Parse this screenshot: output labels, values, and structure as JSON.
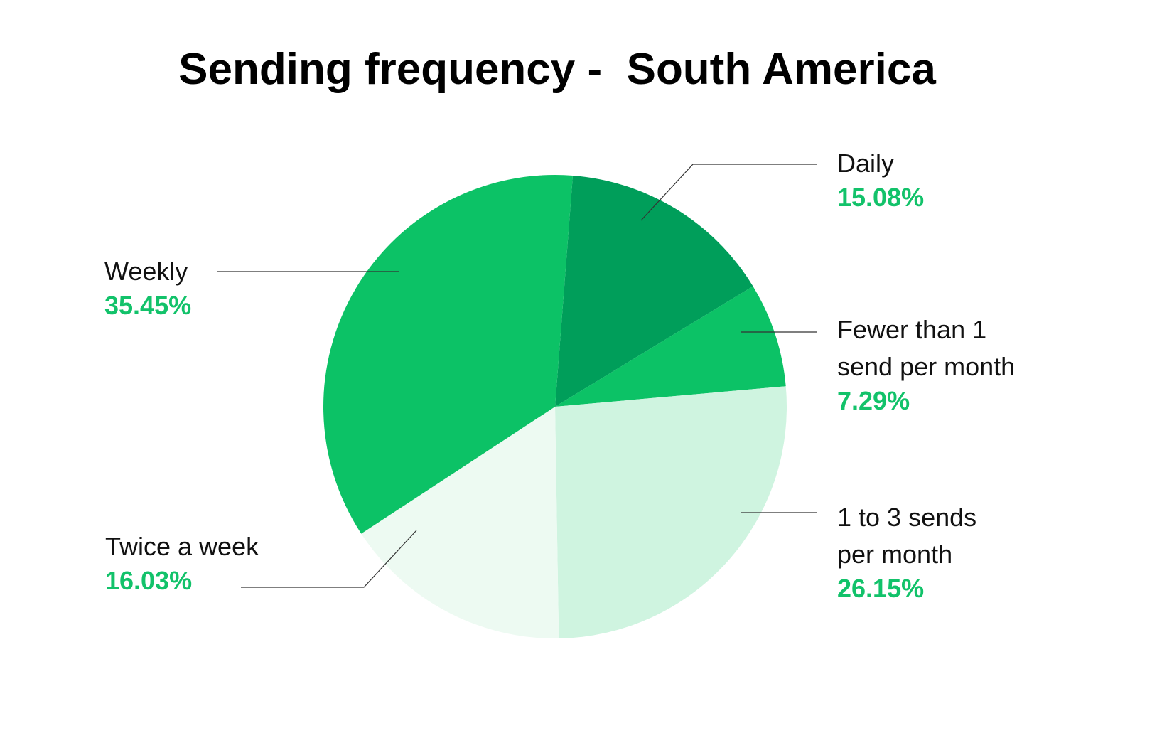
{
  "chart_data": {
    "type": "pie",
    "title": "Sending frequency -  South America",
    "start_angle_deg": 4.4,
    "direction": "clockwise",
    "slices": [
      {
        "label": "Daily",
        "value": 15.08,
        "value_label": "15.08%",
        "color": "#009e5a"
      },
      {
        "label": "Fewer than 1 send per month",
        "value": 7.29,
        "value_label": "7.29%",
        "color": "#0cc266"
      },
      {
        "label": "1 to 3 sends per month",
        "value": 26.15,
        "value_label": "26.15%",
        "color": "#cff4e0"
      },
      {
        "label": "Twice a week",
        "value": 16.03,
        "value_label": "16.03%",
        "color": "#edfaf2"
      },
      {
        "label": "Weekly",
        "value": 35.45,
        "value_label": "35.45%",
        "color": "#0cc266"
      }
    ],
    "label_color": "#12c26a"
  }
}
